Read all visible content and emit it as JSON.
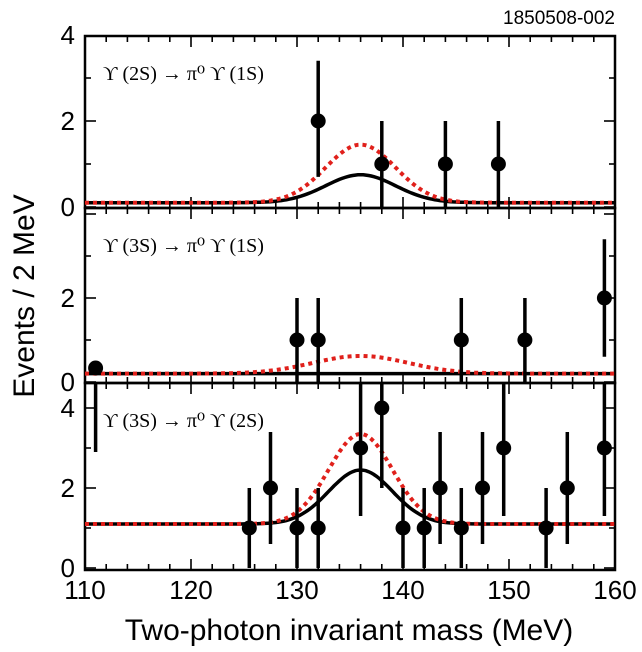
{
  "figure_id": "1850508-002",
  "xlabel": "Two-photon invariant mass (MeV)",
  "ylabel": "Events / 2 MeV",
  "x_ticks": [
    "110",
    "120",
    "130",
    "140",
    "150",
    "160"
  ],
  "colors": {
    "data": "#000000",
    "fit_solid": "#000000",
    "fit_dotted": "#e0201b"
  },
  "chart_data": [
    {
      "type": "scatter",
      "label": "ϒ (2S) → π⁰ ϒ (1S)",
      "xlim": [
        110,
        160
      ],
      "ylim": [
        0,
        4
      ],
      "y_ticks": [
        "0",
        "2",
        "4"
      ],
      "points": [
        {
          "x": 132,
          "y": 2,
          "err_lo": 1.3,
          "err_hi": 1.4
        },
        {
          "x": 138,
          "y": 1,
          "err_lo": 1.0,
          "err_hi": 1.0
        },
        {
          "x": 144,
          "y": 1,
          "err_lo": 1.0,
          "err_hi": 1.0
        },
        {
          "x": 149,
          "y": 1,
          "err_lo": 1.0,
          "err_hi": 1.0
        }
      ],
      "background_level": 0.1,
      "fits": [
        {
          "style": "solid",
          "peak": 0.65,
          "mean": 136,
          "sigma": 3.3
        },
        {
          "style": "dotted",
          "peak": 1.35,
          "mean": 136,
          "sigma": 3.3
        }
      ]
    },
    {
      "type": "scatter",
      "label": "ϒ (3S) → π⁰ ϒ (1S)",
      "xlim": [
        110,
        160
      ],
      "ylim": [
        0,
        4
      ],
      "y_ticks": [
        "0",
        "2"
      ],
      "points": [
        {
          "x": 130,
          "y": 1,
          "err_lo": 1.0,
          "err_hi": 1.0
        },
        {
          "x": 132,
          "y": 1,
          "err_lo": 1.0,
          "err_hi": 1.0
        },
        {
          "x": 145.5,
          "y": 1,
          "err_lo": 1.0,
          "err_hi": 1.0
        },
        {
          "x": 151.5,
          "y": 1,
          "err_lo": 1.0,
          "err_hi": 1.0
        },
        {
          "x": 159,
          "y": 2,
          "err_lo": 1.4,
          "err_hi": 1.4
        }
      ],
      "background_level": 0.2,
      "fits": [
        {
          "style": "solid",
          "peak": 0.0,
          "mean": 136,
          "sigma": 4.5
        },
        {
          "style": "dotted",
          "peak": 0.42,
          "mean": 136,
          "sigma": 4.5
        }
      ]
    },
    {
      "type": "scatter",
      "label": "ϒ (3S) → π⁰ ϒ (2S)",
      "xlim": [
        110,
        160
      ],
      "ylim": [
        0,
        7.8
      ],
      "y_ticks": [
        "0",
        "2",
        "4"
      ],
      "points": [
        {
          "x": 111,
          "y": 5,
          "err_lo": 2.1,
          "err_hi": 2.2
        },
        {
          "x": 125.5,
          "y": 1,
          "err_lo": 1.0,
          "err_hi": 1.0
        },
        {
          "x": 127.5,
          "y": 2,
          "err_lo": 1.4,
          "err_hi": 1.4
        },
        {
          "x": 130,
          "y": 1,
          "err_lo": 1.0,
          "err_hi": 1.0
        },
        {
          "x": 132,
          "y": 1,
          "err_lo": 1.0,
          "err_hi": 1.0
        },
        {
          "x": 136,
          "y": 3,
          "err_lo": 1.7,
          "err_hi": 1.7
        },
        {
          "x": 138,
          "y": 4,
          "err_lo": 2.0,
          "err_hi": 2.0
        },
        {
          "x": 140,
          "y": 1,
          "err_lo": 1.0,
          "err_hi": 1.0
        },
        {
          "x": 142,
          "y": 1,
          "err_lo": 1.0,
          "err_hi": 1.0
        },
        {
          "x": 143.5,
          "y": 2,
          "err_lo": 1.4,
          "err_hi": 1.4
        },
        {
          "x": 145.5,
          "y": 1,
          "err_lo": 1.0,
          "err_hi": 1.0
        },
        {
          "x": 147.5,
          "y": 2,
          "err_lo": 1.4,
          "err_hi": 1.4
        },
        {
          "x": 149.5,
          "y": 3,
          "err_lo": 1.7,
          "err_hi": 1.7
        },
        {
          "x": 153.5,
          "y": 1,
          "err_lo": 1.0,
          "err_hi": 1.0
        },
        {
          "x": 155.5,
          "y": 2,
          "err_lo": 1.4,
          "err_hi": 1.4
        },
        {
          "x": 159,
          "y": 3,
          "err_lo": 1.7,
          "err_hi": 1.7
        }
      ],
      "background_level": 1.1,
      "fits": [
        {
          "style": "solid",
          "peak": 1.35,
          "mean": 136,
          "sigma": 3.0
        },
        {
          "style": "dotted",
          "peak": 2.25,
          "mean": 136,
          "sigma": 3.0
        }
      ]
    }
  ]
}
